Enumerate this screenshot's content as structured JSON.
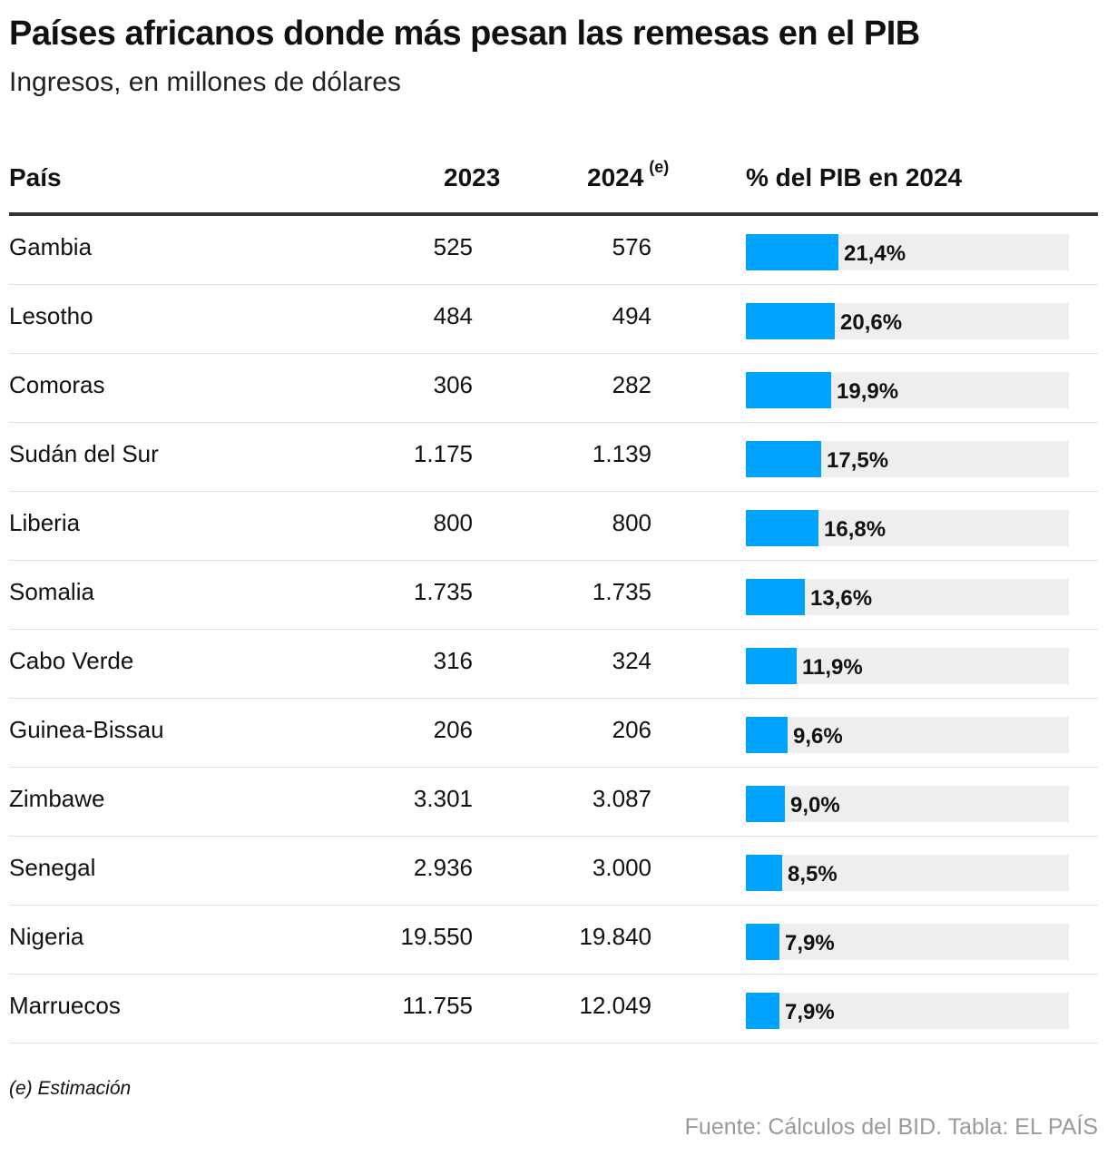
{
  "title": "Países africanos donde más pesan las remesas en el PIB",
  "subtitle": "Ingresos, en millones de dólares",
  "header": {
    "country": "País",
    "y2023": "2023",
    "y2024": "2024",
    "y2024_note": "(e)",
    "pct": "% del PIB en 2024"
  },
  "colors": {
    "bar": "#00a2ff",
    "track": "#eeeeee"
  },
  "chart_data": {
    "type": "table",
    "columns": [
      "País",
      "2023",
      "2024 (e)",
      "% del PIB en 2024"
    ],
    "bar_max": 75,
    "rows": [
      {
        "country": "Gambia",
        "y2023": "525",
        "y2024": "576",
        "pct": 21.4,
        "pct_label": "21,4%"
      },
      {
        "country": "Lesotho",
        "y2023": "484",
        "y2024": "494",
        "pct": 20.6,
        "pct_label": "20,6%"
      },
      {
        "country": "Comoras",
        "y2023": "306",
        "y2024": "282",
        "pct": 19.9,
        "pct_label": "19,9%"
      },
      {
        "country": "Sudán del Sur",
        "y2023": "1.175",
        "y2024": "1.139",
        "pct": 17.5,
        "pct_label": "17,5%"
      },
      {
        "country": "Liberia",
        "y2023": "800",
        "y2024": "800",
        "pct": 16.8,
        "pct_label": "16,8%"
      },
      {
        "country": "Somalia",
        "y2023": "1.735",
        "y2024": "1.735",
        "pct": 13.6,
        "pct_label": "13,6%"
      },
      {
        "country": "Cabo Verde",
        "y2023": "316",
        "y2024": "324",
        "pct": 11.9,
        "pct_label": "11,9%"
      },
      {
        "country": "Guinea-Bissau",
        "y2023": "206",
        "y2024": "206",
        "pct": 9.6,
        "pct_label": "9,6%"
      },
      {
        "country": "Zimbawe",
        "y2023": "3.301",
        "y2024": "3.087",
        "pct": 9.0,
        "pct_label": "9,0%"
      },
      {
        "country": "Senegal",
        "y2023": "2.936",
        "y2024": "3.000",
        "pct": 8.5,
        "pct_label": "8,5%"
      },
      {
        "country": "Nigeria",
        "y2023": "19.550",
        "y2024": "19.840",
        "pct": 7.9,
        "pct_label": "7,9%"
      },
      {
        "country": "Marruecos",
        "y2023": "11.755",
        "y2024": "12.049",
        "pct": 7.9,
        "pct_label": "7,9%"
      }
    ]
  },
  "footnote": "(e) Estimación",
  "source": "Fuente: Cálculos del BID. Tabla: EL PAÍS"
}
